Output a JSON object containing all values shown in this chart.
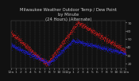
{
  "title": "Milwaukee Weather Outdoor Temp / Dew Point\nby Minute\n(24 Hours) (Alternate)",
  "title_fontsize": 3.8,
  "title_color": "#cccccc",
  "background_color": "#111111",
  "plot_bg_color": "#111111",
  "temp_color": "#ff2020",
  "dew_color": "#2020ff",
  "ylim": [
    14,
    72
  ],
  "xlim": [
    0,
    1440
  ],
  "grid_color": "#444444",
  "tick_color": "#aaaaaa",
  "tick_fontsize": 3.2,
  "x_ticks": [
    0,
    60,
    120,
    180,
    240,
    300,
    360,
    420,
    480,
    540,
    600,
    660,
    720,
    780,
    840,
    900,
    960,
    1020,
    1080,
    1140,
    1200,
    1260,
    1320,
    1380,
    1440
  ],
  "x_tick_labels": [
    "12a",
    "1",
    "2",
    "3",
    "4",
    "5",
    "6",
    "7",
    "8",
    "9",
    "10",
    "11",
    "12p",
    "1",
    "2",
    "3",
    "4",
    "5",
    "6",
    "7",
    "8",
    "9",
    "10",
    "11",
    "12a"
  ],
  "y_ticks": [
    20,
    30,
    40,
    50,
    60,
    70
  ],
  "y_tick_labels": [
    "20",
    "30",
    "40",
    "50",
    "60",
    "70"
  ],
  "scatter_size": 0.4,
  "temp_profile": {
    "midnight_start": 57,
    "min_val": 19,
    "min_hour": 7.5,
    "max_val": 70,
    "max_hour": 14,
    "end_val": 35
  },
  "dew_profile": {
    "start": 42,
    "val_at_min": 20,
    "min_hour": 8,
    "rise_to": 48,
    "peak_hour": 13,
    "drop_to": 28,
    "end_val": 32
  },
  "noise_temp": 1.8,
  "noise_dew": 1.5,
  "seed": 17
}
